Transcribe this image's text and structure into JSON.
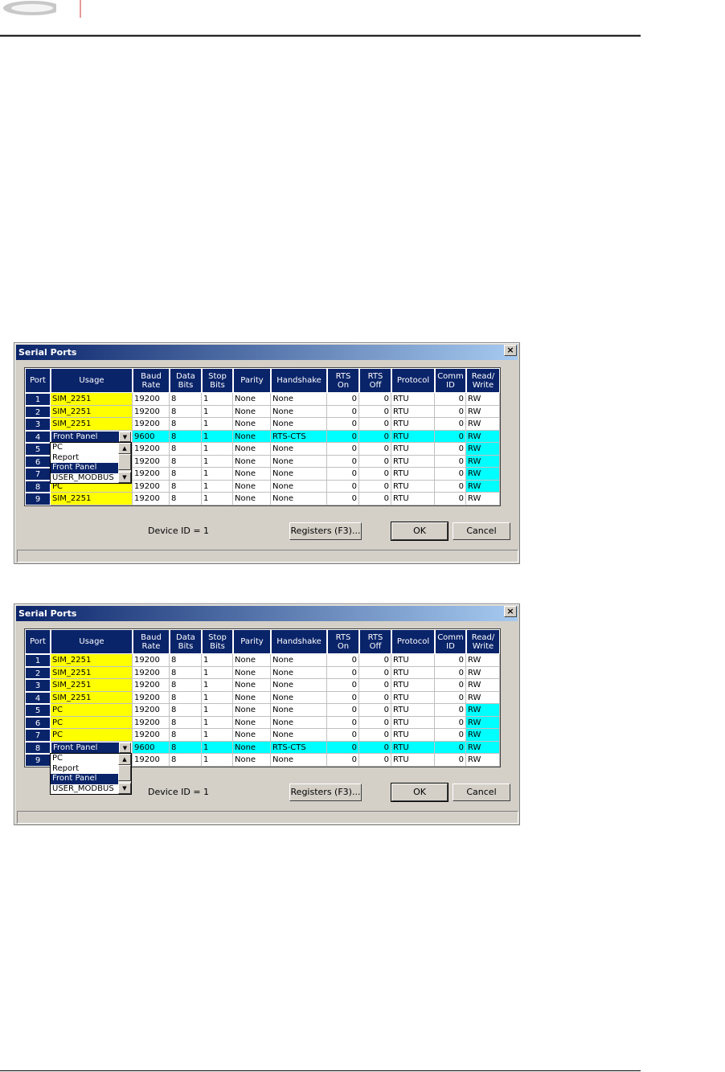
{
  "dialogs": [
    {
      "title": "Serial Ports",
      "columns": [
        "Port",
        "Usage",
        "Baud\nRate",
        "Data\nBits",
        "Stop\nBits",
        "Parity",
        "Handshake",
        "RTS\nOn",
        "RTS\nOff",
        "Protocol",
        "Comm\nID",
        "Read/\nWrite"
      ],
      "rows": [
        [
          1,
          "SIM_2251",
          19200,
          8,
          1,
          "None",
          "None",
          0,
          0,
          "RTU",
          0,
          "RW"
        ],
        [
          2,
          "SIM_2251",
          19200,
          8,
          1,
          "None",
          "None",
          0,
          0,
          "RTU",
          0,
          "RW"
        ],
        [
          3,
          "SIM_2251",
          19200,
          8,
          1,
          "None",
          "None",
          0,
          0,
          "RTU",
          0,
          "RW"
        ],
        [
          4,
          "Front Panel",
          9600,
          8,
          1,
          "None",
          "RTS-CTS",
          0,
          0,
          "RTU",
          0,
          "RW"
        ],
        [
          5,
          null,
          19200,
          8,
          1,
          "None",
          "None",
          0,
          0,
          "RTU",
          0,
          "RW"
        ],
        [
          6,
          null,
          19200,
          8,
          1,
          "None",
          "None",
          0,
          0,
          "RTU",
          0,
          "RW"
        ],
        [
          7,
          null,
          19200,
          8,
          1,
          "None",
          "None",
          0,
          0,
          "RTU",
          0,
          "RW"
        ],
        [
          8,
          "PC",
          19200,
          8,
          1,
          "None",
          "None",
          0,
          0,
          "RTU",
          0,
          "RW"
        ],
        [
          9,
          "SIM_2251",
          19200,
          8,
          1,
          "None",
          "None",
          0,
          0,
          "RTU",
          0,
          "RW"
        ]
      ],
      "dropdown_options": [
        "PC",
        "Report",
        "Front Panel",
        "USER_MODBUS"
      ],
      "device_id": "Device ID = 1",
      "buttons": [
        "Registers (F3)...",
        "OK",
        "Cancel"
      ]
    },
    {
      "title": "Serial Ports",
      "columns": [
        "Port",
        "Usage",
        "Baud\nRate",
        "Data\nBits",
        "Stop\nBits",
        "Parity",
        "Handshake",
        "RTS\nOn",
        "RTS\nOff",
        "Protocol",
        "Comm\nID",
        "Read/\nWrite"
      ],
      "rows": [
        [
          1,
          "SIM_2251",
          19200,
          8,
          1,
          "None",
          "None",
          0,
          0,
          "RTU",
          0,
          "RW"
        ],
        [
          2,
          "SIM_2251",
          19200,
          8,
          1,
          "None",
          "None",
          0,
          0,
          "RTU",
          0,
          "RW"
        ],
        [
          3,
          "SIM_2251",
          19200,
          8,
          1,
          "None",
          "None",
          0,
          0,
          "RTU",
          0,
          "RW"
        ],
        [
          4,
          "SIM_2251",
          19200,
          8,
          1,
          "None",
          "None",
          0,
          0,
          "RTU",
          0,
          "RW"
        ],
        [
          5,
          "PC",
          19200,
          8,
          1,
          "None",
          "None",
          0,
          0,
          "RTU",
          0,
          "RW"
        ],
        [
          6,
          "PC",
          19200,
          8,
          1,
          "None",
          "None",
          0,
          0,
          "RTU",
          0,
          "RW"
        ],
        [
          7,
          "PC",
          19200,
          8,
          1,
          "None",
          "None",
          0,
          0,
          "RTU",
          0,
          "RW"
        ],
        [
          8,
          "Front Panel",
          9600,
          8,
          1,
          "None",
          "RTS-CTS",
          0,
          0,
          "RTU",
          0,
          "RW"
        ],
        [
          9,
          null,
          19200,
          8,
          1,
          "None",
          "None",
          0,
          0,
          "RTU",
          0,
          "RW"
        ]
      ],
      "dropdown_options": [
        "PC",
        "Report",
        "Front Panel",
        "USER_MODBUS"
      ],
      "device_id": "Device ID = 1",
      "buttons": [
        "Registers (F3)...",
        "OK",
        "Cancel"
      ]
    }
  ]
}
